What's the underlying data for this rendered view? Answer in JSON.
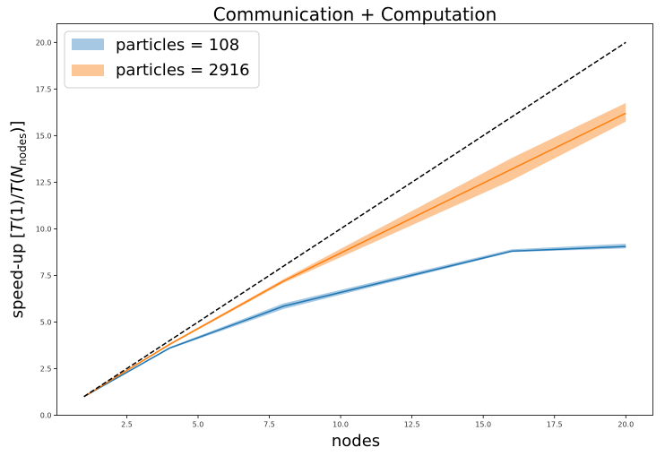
{
  "chart_data": {
    "type": "line",
    "title": "Communication + Computation",
    "xlabel": "nodes",
    "ylabel": {
      "prefix": "speed-up [",
      "t1": "T",
      "mid": "(1)/",
      "t2": "T",
      "open": "(",
      "n": "N",
      "sub": "nodes",
      "close": ")]"
    },
    "xlim": [
      0.05,
      20.95
    ],
    "ylim": [
      0,
      21
    ],
    "xticks": [
      {
        "value": 2.5,
        "label": "2.5"
      },
      {
        "value": 5.0,
        "label": "5.0"
      },
      {
        "value": 7.5,
        "label": "7.5"
      },
      {
        "value": 10.0,
        "label": "10.0"
      },
      {
        "value": 12.5,
        "label": "12.5"
      },
      {
        "value": 15.0,
        "label": "15.0"
      },
      {
        "value": 17.5,
        "label": "17.5"
      },
      {
        "value": 20.0,
        "label": "20.0"
      }
    ],
    "yticks": [
      {
        "value": 0.0,
        "label": "0.0"
      },
      {
        "value": 2.5,
        "label": "2.5"
      },
      {
        "value": 5.0,
        "label": "5.0"
      },
      {
        "value": 7.5,
        "label": "7.5"
      },
      {
        "value": 10.0,
        "label": "10.0"
      },
      {
        "value": 12.5,
        "label": "12.5"
      },
      {
        "value": 15.0,
        "label": "15.0"
      },
      {
        "value": 17.5,
        "label": "17.5"
      },
      {
        "value": 20.0,
        "label": "20.0"
      }
    ],
    "grid": false,
    "legend": "top-left",
    "ideal": {
      "x": [
        1,
        20
      ],
      "y": [
        1,
        20
      ],
      "color": "#000000",
      "style": "dashed"
    },
    "series": [
      {
        "name": "particles = 108",
        "color": "#1f77b4",
        "band_color": "#a6c8e2",
        "x": [
          1,
          4,
          8,
          16,
          20
        ],
        "y": [
          1.0,
          3.6,
          5.85,
          8.8,
          9.05
        ],
        "lower": [
          1.0,
          3.55,
          5.7,
          8.75,
          8.95
        ],
        "upper": [
          1.0,
          3.65,
          6.0,
          8.9,
          9.2
        ]
      },
      {
        "name": "particles = 2916",
        "color": "#ff7f0e",
        "band_color": "#fdc697",
        "x": [
          1,
          4,
          8,
          16,
          20
        ],
        "y": [
          1.0,
          3.8,
          7.2,
          13.2,
          16.2
        ],
        "lower": [
          1.0,
          3.75,
          7.1,
          12.6,
          15.75
        ],
        "upper": [
          1.0,
          3.85,
          7.3,
          13.8,
          16.75
        ]
      }
    ]
  }
}
